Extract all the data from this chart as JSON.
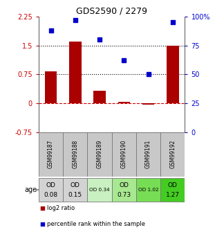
{
  "title": "GDS2590 / 2279",
  "samples": [
    "GSM99187",
    "GSM99188",
    "GSM99189",
    "GSM99190",
    "GSM99191",
    "GSM99192"
  ],
  "log2_ratio": [
    0.82,
    1.6,
    0.32,
    0.04,
    -0.03,
    1.5
  ],
  "percentile_rank": [
    88,
    97,
    80,
    62,
    50,
    95
  ],
  "bar_color": "#aa0000",
  "dot_color": "#0000cc",
  "ylim_left": [
    -0.75,
    2.25
  ],
  "ylim_right": [
    0,
    100
  ],
  "yticks_left": [
    -0.75,
    0,
    0.75,
    1.5,
    2.25
  ],
  "yticks_right": [
    0,
    25,
    50,
    75,
    100
  ],
  "hline_dashed_val": 0,
  "hline_dotted_vals": [
    0.75,
    1.5
  ],
  "hline_dash_color": "#cc0000",
  "hline_dot_color": "#000000",
  "age_labels_line1": [
    "OD",
    "OD",
    "OD 0.34",
    "OD",
    "OD 1.02",
    "OD"
  ],
  "age_labels_line2": [
    "0.08",
    "0.15",
    "",
    "0.73",
    "",
    "1.27"
  ],
  "age_bg_colors": [
    "#d3d3d3",
    "#d3d3d3",
    "#c8f0c0",
    "#a8e890",
    "#77dd55",
    "#44cc22"
  ],
  "sample_bg_color": "#c8c8c8",
  "legend_red_label": "log2 ratio",
  "legend_blue_label": "percentile rank within the sample",
  "right_axis_color": "#0000cc",
  "left_axis_color": "#cc0000",
  "title_fontsize": 9,
  "tick_fontsize": 7,
  "bar_width": 0.5
}
